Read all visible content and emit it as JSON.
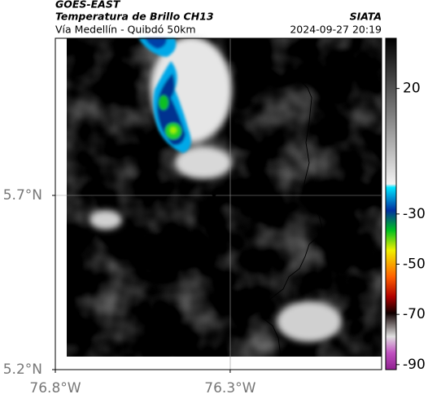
{
  "header": {
    "satellite": "GOES-EAST",
    "product": "Temperatura de Brillo CH13",
    "route": "Vía Medellín - Quibdó 50km",
    "org": "SIATA",
    "datetime": "2024-09-27 20:19"
  },
  "map": {
    "xlim": [
      -76.8,
      -75.867
    ],
    "ylim": [
      5.2,
      6.151
    ],
    "xticks": [
      {
        "value": -76.8,
        "label": "76.8°W"
      },
      {
        "value": -76.3,
        "label": "76.3°W"
      }
    ],
    "yticks": [
      {
        "value": 5.7,
        "label": "5.7°N"
      },
      {
        "value": 5.2,
        "label": "5.2°N"
      }
    ]
  },
  "colorbar": {
    "lim": [
      -92,
      40
    ],
    "ticks": [
      20,
      -30,
      -50,
      -70,
      -90
    ]
  }
}
